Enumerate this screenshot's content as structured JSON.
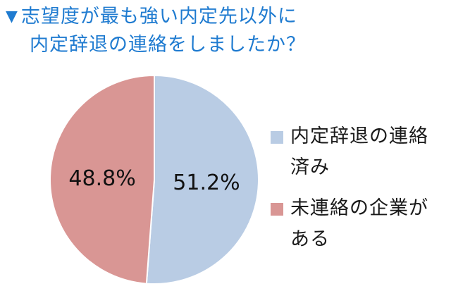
{
  "title": {
    "marker": "▼",
    "line1": "志望度が最も強い内定先以外に",
    "line2": "内定辞退の連絡をしましたか？"
  },
  "chart_data": {
    "type": "pie",
    "title": "志望度が最も強い内定先以外に内定辞退の連絡をしましたか？",
    "slices": [
      {
        "label": "内定辞退の連絡済み",
        "label_lines": [
          "内定辞退の連絡",
          "済み"
        ],
        "value": 51.2,
        "display": "51.2%",
        "color": "#b9cce4"
      },
      {
        "label": "未連絡の企業がある",
        "label_lines": [
          "未連絡の企業が",
          "ある"
        ],
        "value": 48.8,
        "display": "48.8%",
        "color": "#d99694"
      }
    ],
    "start": "top",
    "direction": "clockwise",
    "legend_position": "right"
  }
}
